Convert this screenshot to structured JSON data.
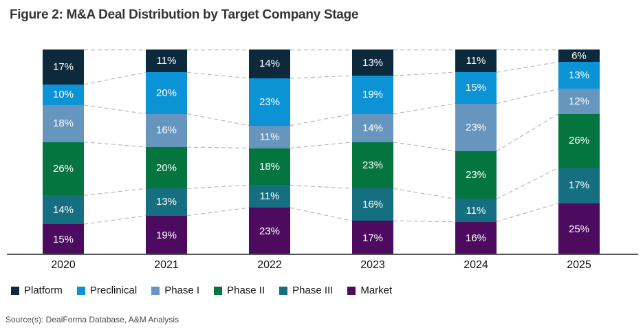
{
  "header": {
    "title": "Figure 2: M&A Deal Distribution by Target Company Stage"
  },
  "footer": {
    "source": "Source(s): DealForma Database, A&M Analysis"
  },
  "chart_data": {
    "type": "bar",
    "variant": "100-percent-stacked-column",
    "title": "Figure 2: M&A Deal Distribution by Target Company Stage",
    "categories": [
      "2020",
      "2021",
      "2022",
      "2023",
      "2024",
      "2025"
    ],
    "stack_order": "top-to-bottom",
    "series": [
      {
        "name": "Platform",
        "color": "#0d2a3c",
        "values": [
          17,
          11,
          14,
          13,
          11,
          6
        ]
      },
      {
        "name": "Preclinical",
        "color": "#0b93d5",
        "values": [
          10,
          20,
          23,
          19,
          15,
          13
        ]
      },
      {
        "name": "Phase I",
        "color": "#6695bd",
        "values": [
          18,
          16,
          11,
          14,
          23,
          12
        ]
      },
      {
        "name": "Phase II",
        "color": "#057540",
        "values": [
          26,
          20,
          18,
          23,
          23,
          26
        ]
      },
      {
        "name": "Phase III",
        "color": "#156f80",
        "values": [
          14,
          13,
          11,
          16,
          11,
          17
        ]
      },
      {
        "name": "Market",
        "color": "#4d0b5f",
        "values": [
          15,
          19,
          23,
          17,
          16,
          25
        ]
      }
    ],
    "value_suffix": "%",
    "data_labels": "inside-center-white",
    "legend_position": "bottom",
    "legend_entries": [
      "Platform",
      "Preclinical",
      "Phase I",
      "Phase II",
      "Phase III",
      "Market"
    ],
    "connector_lines": {
      "style": "dashed",
      "color": "#b9b9b9"
    },
    "axis_line_color": "#55565a",
    "ylim": [
      0,
      100
    ],
    "grid": false,
    "xlabel": "",
    "ylabel": ""
  }
}
